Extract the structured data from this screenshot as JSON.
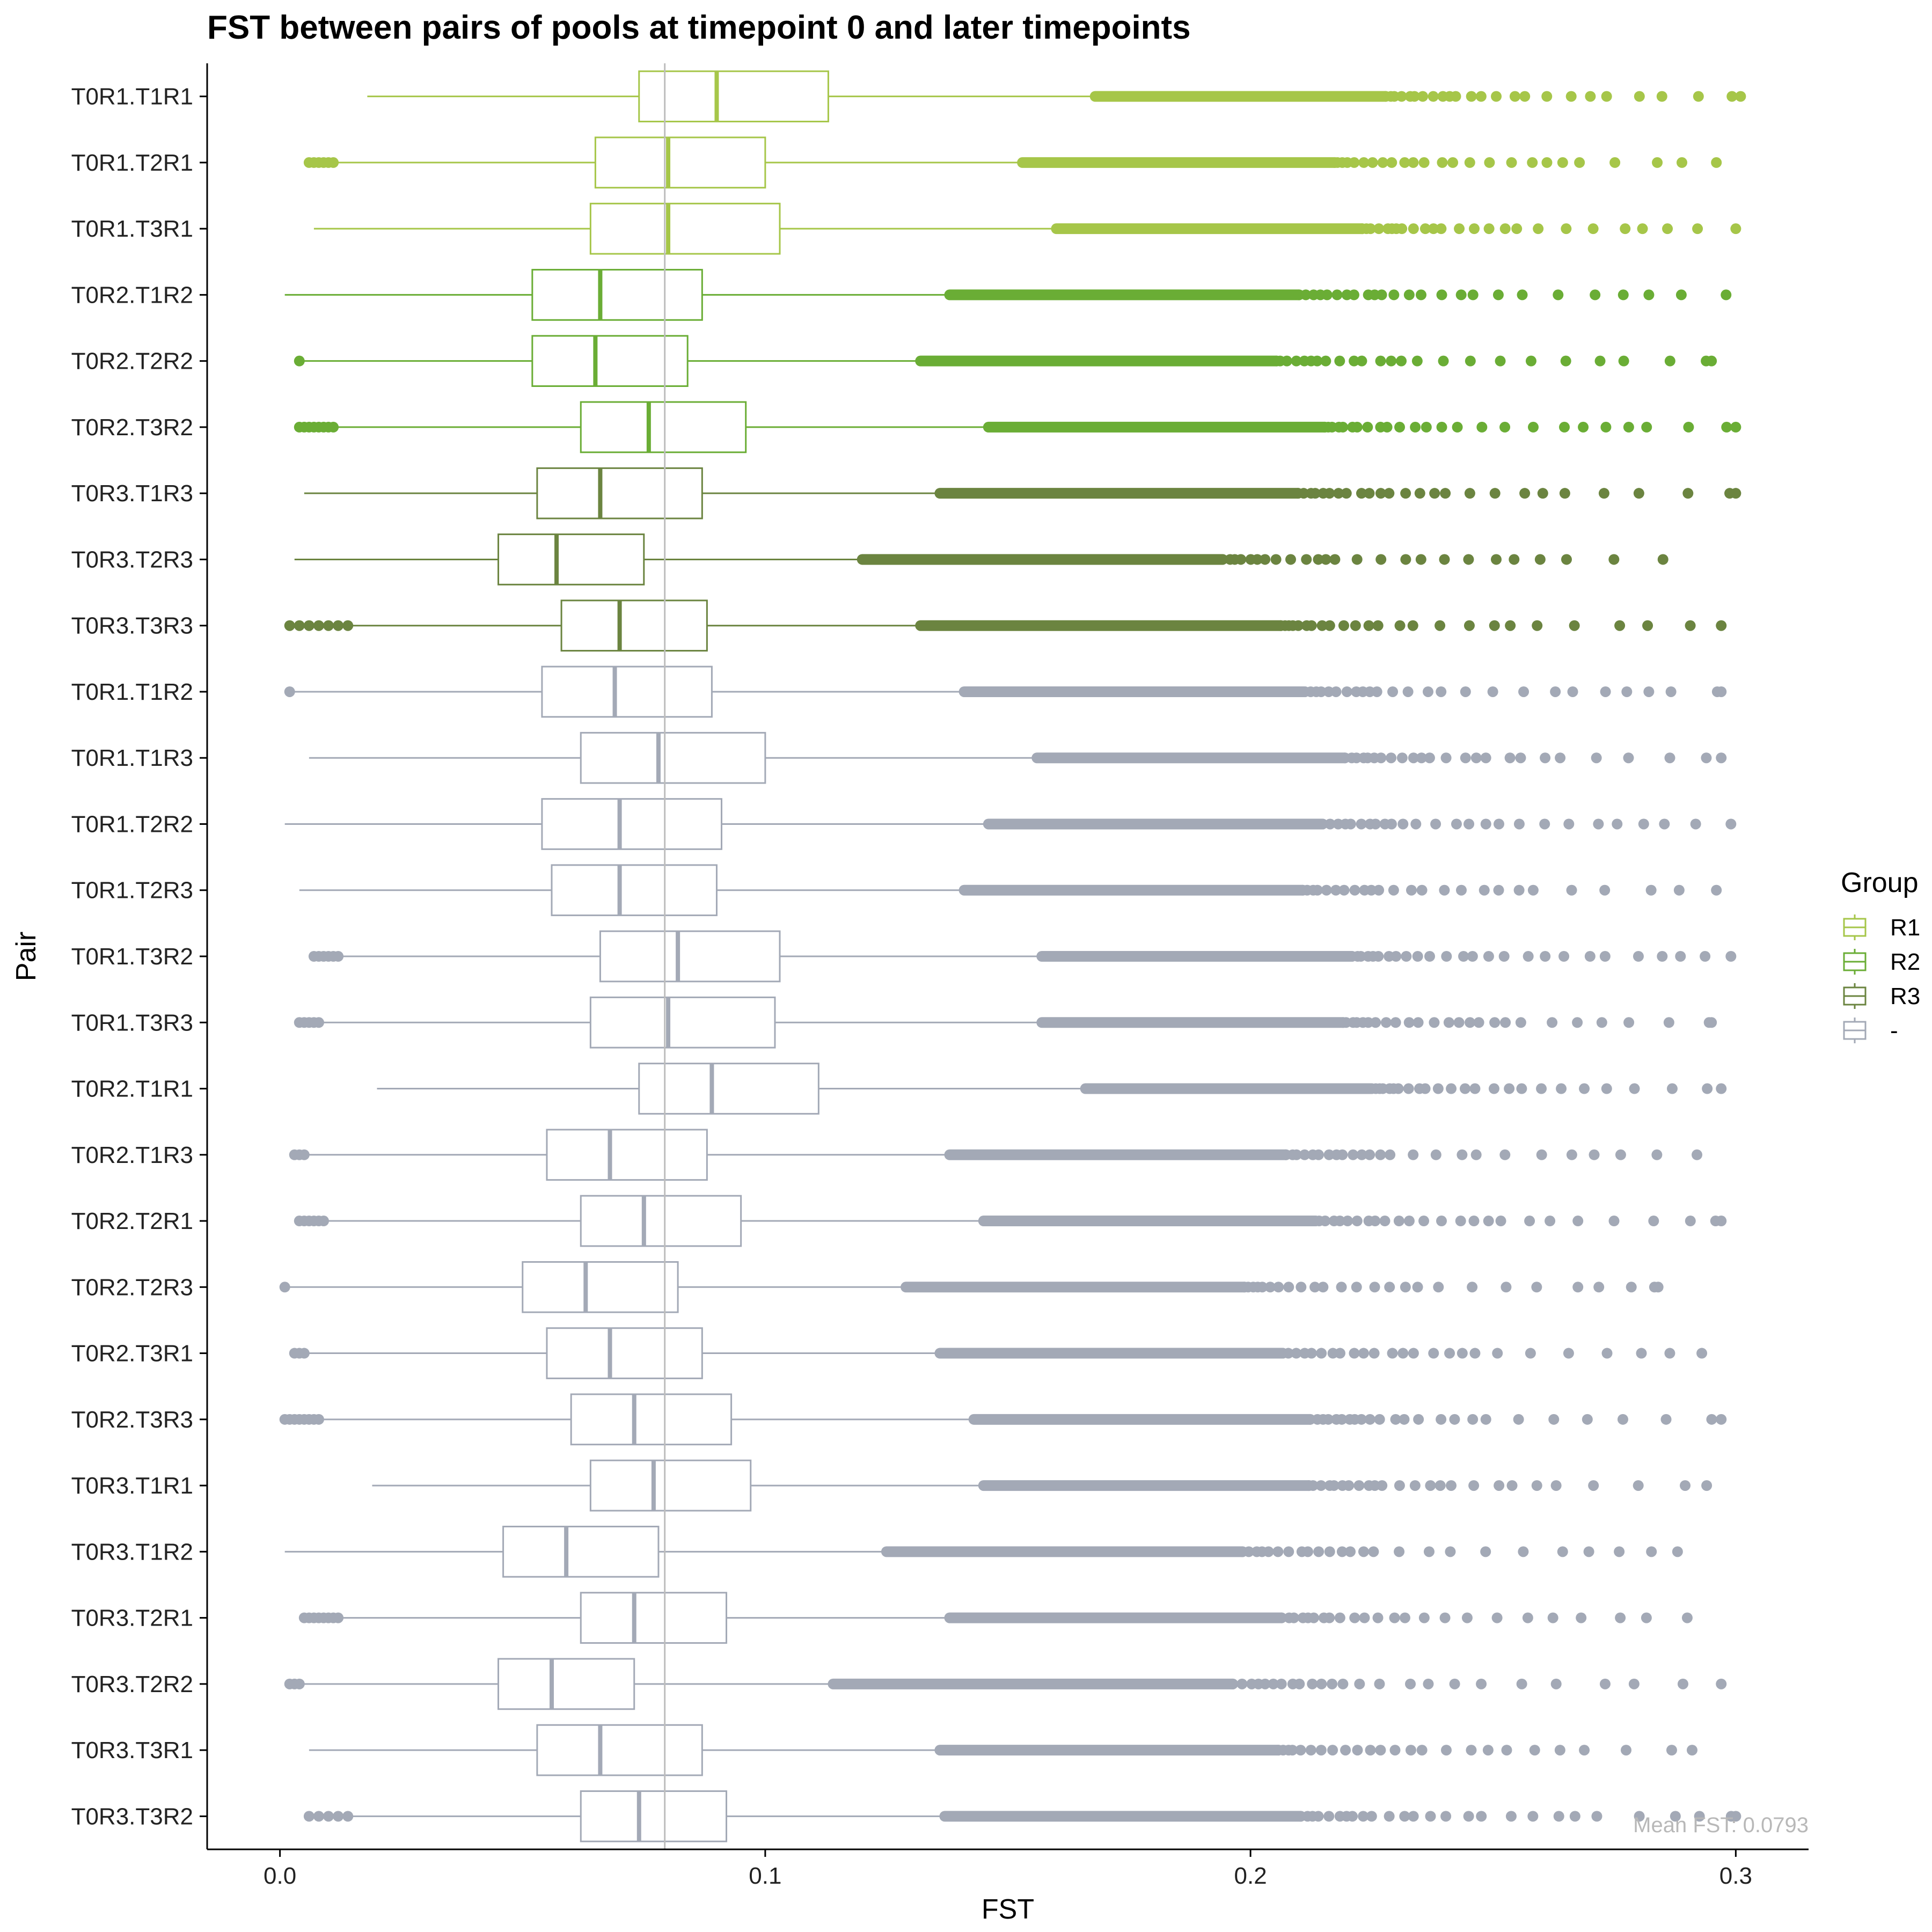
{
  "chart_data": {
    "type": "box",
    "orientation": "horizontal",
    "title": "FST between pairs of pools at timepoint 0 and later timepoints",
    "xlabel": "FST",
    "ylabel": "Pair",
    "xlim": [
      -0.015,
      0.315
    ],
    "xticks": [
      0.0,
      0.1,
      0.2,
      0.3
    ],
    "xtick_labels": [
      "0.0",
      "0.1",
      "0.2",
      "0.3"
    ],
    "grid": false,
    "mean_line": {
      "value": 0.0793,
      "label": "Mean FST: 0.0793",
      "color": "#bdbdbd"
    },
    "legend": {
      "title": "Group",
      "placement": "right",
      "items": [
        {
          "label": "R1",
          "color": "#a6c649"
        },
        {
          "label": "R2",
          "color": "#6aad35"
        },
        {
          "label": "R3",
          "color": "#6b8440"
        },
        {
          "label": "-",
          "color": "#a3a9b6"
        }
      ]
    },
    "boxes": [
      {
        "pair": "T0R1.T1R1",
        "group": "R1",
        "whisker_low": 0.018,
        "q1": 0.074,
        "median": 0.09,
        "q3": 0.113,
        "whisker_high": 0.168,
        "outliers": [],
        "outlier_range": [
          0.168,
          0.301
        ]
      },
      {
        "pair": "T0R1.T2R1",
        "group": "R1",
        "whisker_low": 0.012,
        "q1": 0.065,
        "median": 0.08,
        "q3": 0.1,
        "whisker_high": 0.153,
        "outliers": [
          0.006,
          0.007,
          0.008,
          0.009,
          0.01,
          0.011
        ],
        "outlier_range": [
          0.153,
          0.296
        ]
      },
      {
        "pair": "T0R1.T3R1",
        "group": "R1",
        "whisker_low": 0.007,
        "q1": 0.064,
        "median": 0.08,
        "q3": 0.103,
        "whisker_high": 0.16,
        "outliers": [],
        "outlier_range": [
          0.16,
          0.3
        ]
      },
      {
        "pair": "T0R2.T1R2",
        "group": "R2",
        "whisker_low": 0.001,
        "q1": 0.052,
        "median": 0.066,
        "q3": 0.087,
        "whisker_high": 0.138,
        "outliers": [],
        "outlier_range": [
          0.138,
          0.298
        ]
      },
      {
        "pair": "T0R2.T2R2",
        "group": "R2",
        "whisker_low": 0.004,
        "q1": 0.052,
        "median": 0.065,
        "q3": 0.084,
        "whisker_high": 0.132,
        "outliers": [
          0.004
        ],
        "outlier_range": [
          0.132,
          0.295
        ]
      },
      {
        "pair": "T0R2.T3R2",
        "group": "R2",
        "whisker_low": 0.012,
        "q1": 0.062,
        "median": 0.076,
        "q3": 0.096,
        "whisker_high": 0.146,
        "outliers": [
          0.004,
          0.005,
          0.006,
          0.007,
          0.008,
          0.009,
          0.01,
          0.011
        ],
        "outlier_range": [
          0.146,
          0.3
        ]
      },
      {
        "pair": "T0R3.T1R3",
        "group": "R3",
        "whisker_low": 0.005,
        "q1": 0.053,
        "median": 0.066,
        "q3": 0.087,
        "whisker_high": 0.136,
        "outliers": [],
        "outlier_range": [
          0.136,
          0.3
        ]
      },
      {
        "pair": "T0R3.T2R3",
        "group": "R3",
        "whisker_low": 0.003,
        "q1": 0.045,
        "median": 0.057,
        "q3": 0.075,
        "whisker_high": 0.12,
        "outliers": [],
        "outlier_range": [
          0.12,
          0.285
        ]
      },
      {
        "pair": "T0R3.T3R3",
        "group": "R3",
        "whisker_low": 0.014,
        "q1": 0.058,
        "median": 0.07,
        "q3": 0.088,
        "whisker_high": 0.132,
        "outliers": [
          0.002,
          0.004,
          0.006,
          0.008,
          0.01,
          0.012,
          0.014
        ],
        "outlier_range": [
          0.132,
          0.297
        ]
      },
      {
        "pair": "T0R1.T1R2",
        "group": "-",
        "whisker_low": 0.002,
        "q1": 0.054,
        "median": 0.069,
        "q3": 0.089,
        "whisker_high": 0.141,
        "outliers": [
          0.002
        ],
        "outlier_range": [
          0.141,
          0.297
        ]
      },
      {
        "pair": "T0R1.T1R3",
        "group": "-",
        "whisker_low": 0.006,
        "q1": 0.062,
        "median": 0.078,
        "q3": 0.1,
        "whisker_high": 0.156,
        "outliers": [],
        "outlier_range": [
          0.156,
          0.297
        ]
      },
      {
        "pair": "T0R1.T2R2",
        "group": "-",
        "whisker_low": 0.001,
        "q1": 0.054,
        "median": 0.07,
        "q3": 0.091,
        "whisker_high": 0.146,
        "outliers": [],
        "outlier_range": [
          0.146,
          0.299
        ]
      },
      {
        "pair": "T0R1.T2R3",
        "group": "-",
        "whisker_low": 0.004,
        "q1": 0.056,
        "median": 0.07,
        "q3": 0.09,
        "whisker_high": 0.141,
        "outliers": [],
        "outlier_range": [
          0.141,
          0.296
        ]
      },
      {
        "pair": "T0R1.T3R2",
        "group": "-",
        "whisker_low": 0.013,
        "q1": 0.066,
        "median": 0.082,
        "q3": 0.103,
        "whisker_high": 0.157,
        "outliers": [
          0.007,
          0.008,
          0.009,
          0.01,
          0.011,
          0.012
        ],
        "outlier_range": [
          0.157,
          0.299
        ]
      },
      {
        "pair": "T0R1.T3R3",
        "group": "-",
        "whisker_low": 0.009,
        "q1": 0.064,
        "median": 0.08,
        "q3": 0.102,
        "whisker_high": 0.157,
        "outliers": [
          0.004,
          0.005,
          0.006,
          0.007,
          0.008
        ],
        "outlier_range": [
          0.157,
          0.295
        ]
      },
      {
        "pair": "T0R2.T1R1",
        "group": "-",
        "whisker_low": 0.02,
        "q1": 0.074,
        "median": 0.089,
        "q3": 0.111,
        "whisker_high": 0.166,
        "outliers": [],
        "outlier_range": [
          0.166,
          0.297
        ]
      },
      {
        "pair": "T0R2.T1R3",
        "group": "-",
        "whisker_low": 0.005,
        "q1": 0.055,
        "median": 0.068,
        "q3": 0.088,
        "whisker_high": 0.138,
        "outliers": [
          0.003,
          0.004,
          0.005
        ],
        "outlier_range": [
          0.138,
          0.292
        ]
      },
      {
        "pair": "T0R2.T2R1",
        "group": "-",
        "whisker_low": 0.01,
        "q1": 0.062,
        "median": 0.075,
        "q3": 0.095,
        "whisker_high": 0.145,
        "outliers": [
          0.004,
          0.005,
          0.006,
          0.007,
          0.008,
          0.009
        ],
        "outlier_range": [
          0.145,
          0.297
        ]
      },
      {
        "pair": "T0R2.T2R3",
        "group": "-",
        "whisker_low": 0.001,
        "q1": 0.05,
        "median": 0.063,
        "q3": 0.082,
        "whisker_high": 0.129,
        "outliers": [
          0.001
        ],
        "outlier_range": [
          0.129,
          0.284
        ]
      },
      {
        "pair": "T0R2.T3R1",
        "group": "-",
        "whisker_low": 0.006,
        "q1": 0.055,
        "median": 0.068,
        "q3": 0.087,
        "whisker_high": 0.136,
        "outliers": [
          0.003,
          0.004,
          0.005
        ],
        "outlier_range": [
          0.136,
          0.293
        ]
      },
      {
        "pair": "T0R2.T3R3",
        "group": "-",
        "whisker_low": 0.009,
        "q1": 0.06,
        "median": 0.073,
        "q3": 0.093,
        "whisker_high": 0.143,
        "outliers": [
          0.001,
          0.002,
          0.003,
          0.004,
          0.005,
          0.006,
          0.007,
          0.008
        ],
        "outlier_range": [
          0.143,
          0.297
        ]
      },
      {
        "pair": "T0R3.T1R1",
        "group": "-",
        "whisker_low": 0.019,
        "q1": 0.064,
        "median": 0.077,
        "q3": 0.097,
        "whisker_high": 0.145,
        "outliers": [],
        "outlier_range": [
          0.145,
          0.294
        ]
      },
      {
        "pair": "T0R3.T1R2",
        "group": "-",
        "whisker_low": 0.001,
        "q1": 0.046,
        "median": 0.059,
        "q3": 0.078,
        "whisker_high": 0.125,
        "outliers": [],
        "outlier_range": [
          0.125,
          0.288
        ]
      },
      {
        "pair": "T0R3.T2R1",
        "group": "-",
        "whisker_low": 0.013,
        "q1": 0.062,
        "median": 0.073,
        "q3": 0.092,
        "whisker_high": 0.138,
        "outliers": [
          0.005,
          0.006,
          0.007,
          0.008,
          0.009,
          0.01,
          0.011,
          0.012
        ],
        "outlier_range": [
          0.138,
          0.29
        ]
      },
      {
        "pair": "T0R3.T2R2",
        "group": "-",
        "whisker_low": 0.004,
        "q1": 0.045,
        "median": 0.056,
        "q3": 0.073,
        "whisker_high": 0.114,
        "outliers": [
          0.002,
          0.003,
          0.004
        ],
        "outlier_range": [
          0.114,
          0.297
        ]
      },
      {
        "pair": "T0R3.T3R1",
        "group": "-",
        "whisker_low": 0.006,
        "q1": 0.053,
        "median": 0.066,
        "q3": 0.087,
        "whisker_high": 0.136,
        "outliers": [],
        "outlier_range": [
          0.136,
          0.291
        ]
      },
      {
        "pair": "T0R3.T3R2",
        "group": "-",
        "whisker_low": 0.015,
        "q1": 0.062,
        "median": 0.074,
        "q3": 0.092,
        "whisker_high": 0.137,
        "outliers": [
          0.006,
          0.008,
          0.01,
          0.012,
          0.014
        ],
        "outlier_range": [
          0.137,
          0.3
        ]
      }
    ]
  }
}
